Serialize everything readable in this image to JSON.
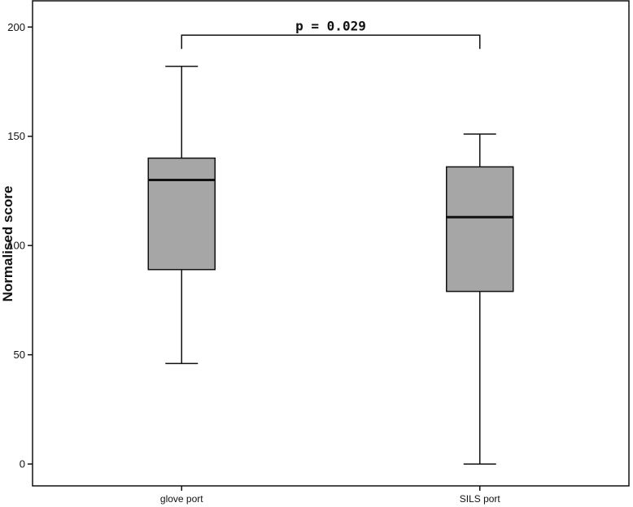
{
  "chart_data": {
    "type": "box",
    "ylabel": "Normalised score",
    "ylim": [
      -10,
      212
    ],
    "yticks": [
      0,
      50,
      100,
      150,
      200
    ],
    "categories": [
      "glove port",
      "SILS port"
    ],
    "boxes": [
      {
        "category": "glove port",
        "min": 46,
        "q1": 89,
        "median": 130,
        "q3": 140,
        "max": 182
      },
      {
        "category": "SILS port",
        "min": 0,
        "q1": 79,
        "median": 113,
        "q3": 136,
        "max": 151
      }
    ],
    "annotation": {
      "text": "p = 0.029",
      "bracket_y": 200
    },
    "colors": {
      "box_fill": "#a6a6a6",
      "stroke": "#111111"
    }
  }
}
